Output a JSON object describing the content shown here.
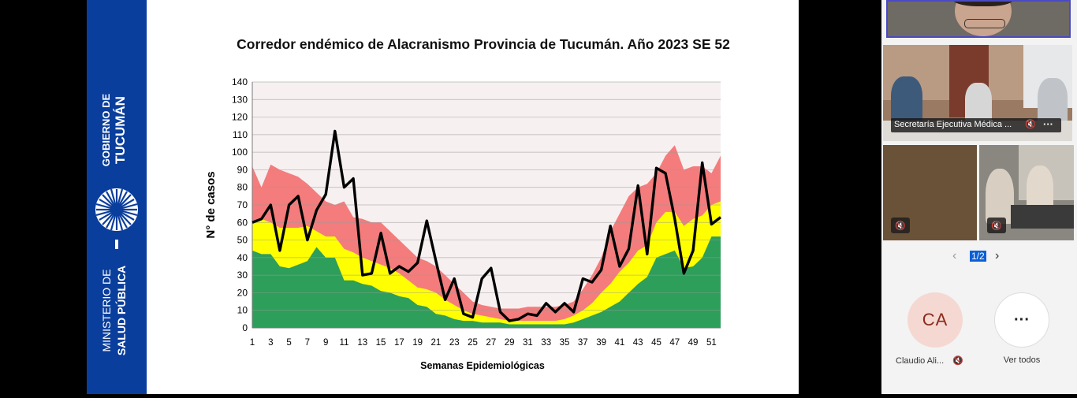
{
  "banner": {
    "top_line1": "GOBIERNO DE",
    "top_line2": "TUCUMÁN",
    "bottom_line1": "MINISTERIO DE",
    "bottom_line2": "SALUD PÚBLICA"
  },
  "chart_data": {
    "type": "area",
    "title": "Corredor endémico de Alacranismo Provincia de Tucumán. Año 2023 SE 52",
    "xlabel": "Semanas Epidemiológicas",
    "ylabel": "N° de casos",
    "ylim": [
      0,
      140
    ],
    "yticks": [
      0,
      10,
      20,
      30,
      40,
      50,
      60,
      70,
      80,
      90,
      100,
      110,
      120,
      130,
      140
    ],
    "xticks": [
      1,
      3,
      5,
      7,
      9,
      11,
      13,
      15,
      17,
      19,
      21,
      23,
      25,
      27,
      29,
      31,
      33,
      35,
      37,
      39,
      41,
      43,
      45,
      47,
      49,
      51
    ],
    "x": [
      1,
      2,
      3,
      4,
      5,
      6,
      7,
      8,
      9,
      10,
      11,
      12,
      13,
      14,
      15,
      16,
      17,
      18,
      19,
      20,
      21,
      22,
      23,
      24,
      25,
      26,
      27,
      28,
      29,
      30,
      31,
      32,
      33,
      34,
      35,
      36,
      37,
      38,
      39,
      40,
      41,
      42,
      43,
      44,
      45,
      46,
      47,
      48,
      49,
      50,
      51,
      52
    ],
    "grid": true,
    "series": [
      {
        "color": "#2e9e5b",
        "values": [
          44,
          42,
          42,
          35,
          34,
          36,
          38,
          46,
          40,
          40,
          27,
          27,
          25,
          24,
          21,
          20,
          18,
          17,
          13,
          12,
          8,
          7,
          5,
          4,
          4,
          3,
          3,
          3,
          2,
          2,
          2,
          2,
          2,
          2,
          2,
          3,
          5,
          7,
          9,
          12,
          15,
          20,
          25,
          29,
          40,
          42,
          44,
          34,
          35,
          40,
          52,
          52
        ]
      },
      {
        "color": "#ffff00",
        "values": [
          60,
          62,
          60,
          57,
          57,
          57,
          58,
          55,
          52,
          52,
          45,
          43,
          40,
          38,
          36,
          34,
          31,
          27,
          23,
          22,
          20,
          16,
          13,
          10,
          8,
          7,
          6,
          5,
          4,
          4,
          4,
          4,
          4,
          4,
          5,
          7,
          10,
          14,
          20,
          25,
          32,
          37,
          44,
          47,
          60,
          66,
          66,
          58,
          62,
          64,
          70,
          72
        ]
      },
      {
        "color": "#f47c7c",
        "values": [
          92,
          80,
          93,
          90,
          88,
          86,
          82,
          77,
          72,
          70,
          72,
          63,
          62,
          60,
          60,
          55,
          50,
          45,
          40,
          38,
          35,
          30,
          25,
          20,
          15,
          13,
          12,
          11,
          11,
          11,
          12,
          12,
          12,
          12,
          13,
          15,
          22,
          30,
          40,
          55,
          65,
          75,
          80,
          82,
          88,
          98,
          104,
          90,
          92,
          92,
          88,
          98
        ]
      },
      {
        "color": "#000000",
        "values": [
          60,
          62,
          70,
          44,
          70,
          75,
          50,
          67,
          76,
          112,
          80,
          85,
          30,
          31,
          54,
          31,
          35,
          32,
          37,
          61,
          38,
          16,
          28,
          8,
          6,
          28,
          34,
          9,
          4,
          5,
          8,
          7,
          14,
          9,
          14,
          9,
          28,
          26,
          33,
          58,
          35,
          45,
          81,
          42,
          91,
          88,
          62,
          31,
          44,
          94,
          59,
          63
        ]
      }
    ]
  },
  "panel": {
    "tile1_label": "Secretaría Ejecutiva Médica ...",
    "pager": "1/2",
    "participant_initials": "CA",
    "participant_name": "Claudio Ali...",
    "see_all": "Ver todos",
    "more_glyph": "···"
  }
}
